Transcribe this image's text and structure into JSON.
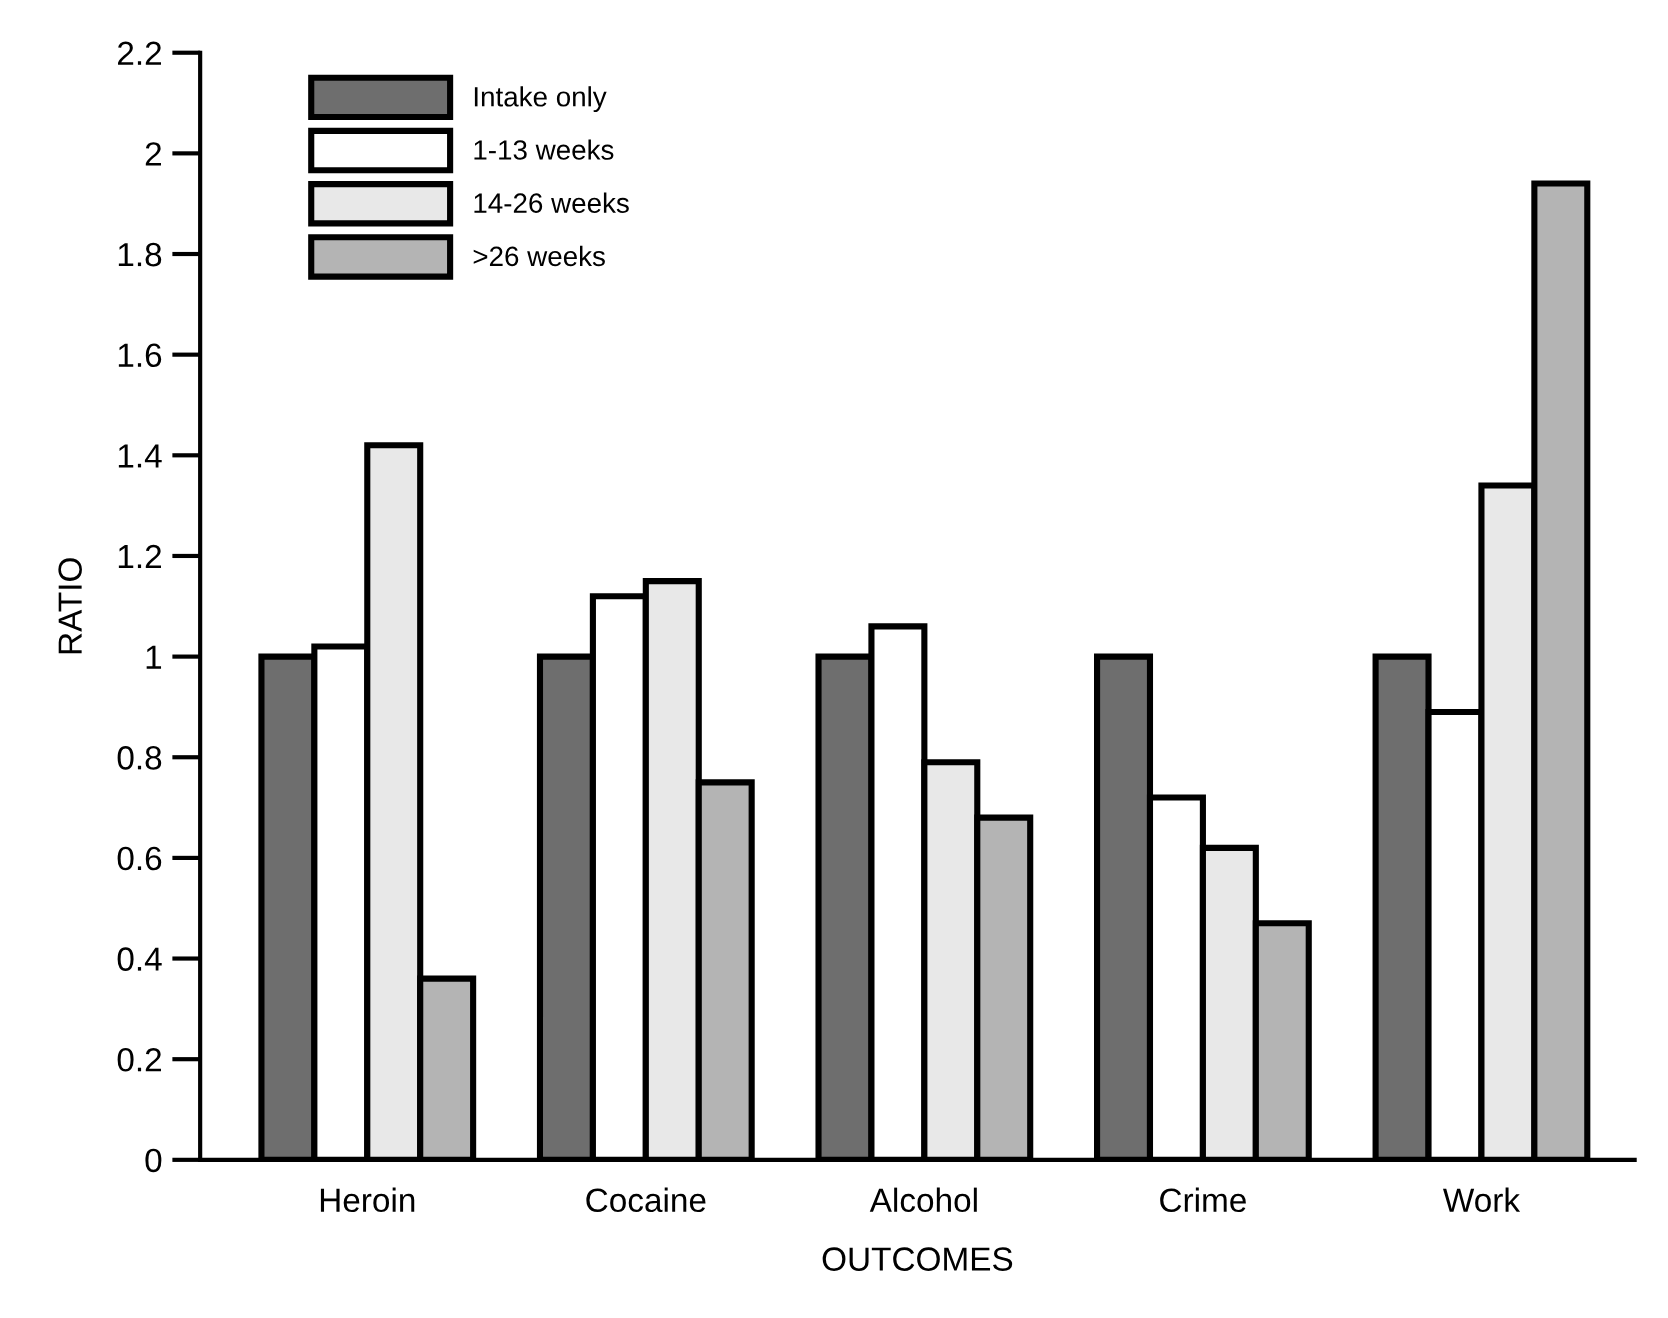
{
  "chart_data": {
    "type": "bar",
    "xlabel": "OUTCOMES",
    "ylabel": "RATIO",
    "categories": [
      "Heroin",
      "Cocaine",
      "Alcohol",
      "Crime",
      "Work"
    ],
    "series": [
      {
        "name": "Intake only",
        "color": "#6e6e6e",
        "values": [
          1.0,
          1.0,
          1.0,
          1.0,
          1.0
        ]
      },
      {
        "name": "1-13 weeks",
        "color": "#ffffff",
        "values": [
          1.02,
          1.12,
          1.06,
          0.72,
          0.89
        ]
      },
      {
        "name": "14-26 weeks",
        "color": "#e8e8e8",
        "values": [
          1.42,
          1.15,
          0.79,
          0.62,
          1.34
        ]
      },
      {
        "name": ">26 weeks",
        "color": "#b4b4b4",
        "values": [
          0.36,
          0.75,
          0.68,
          0.47,
          1.94
        ]
      }
    ],
    "ylim": [
      0,
      2.2
    ],
    "yticks": [
      0,
      0.2,
      0.4,
      0.6,
      0.8,
      1,
      1.2,
      1.4,
      1.6,
      1.8,
      2,
      2.2
    ],
    "grid": false,
    "legend": "top left"
  }
}
